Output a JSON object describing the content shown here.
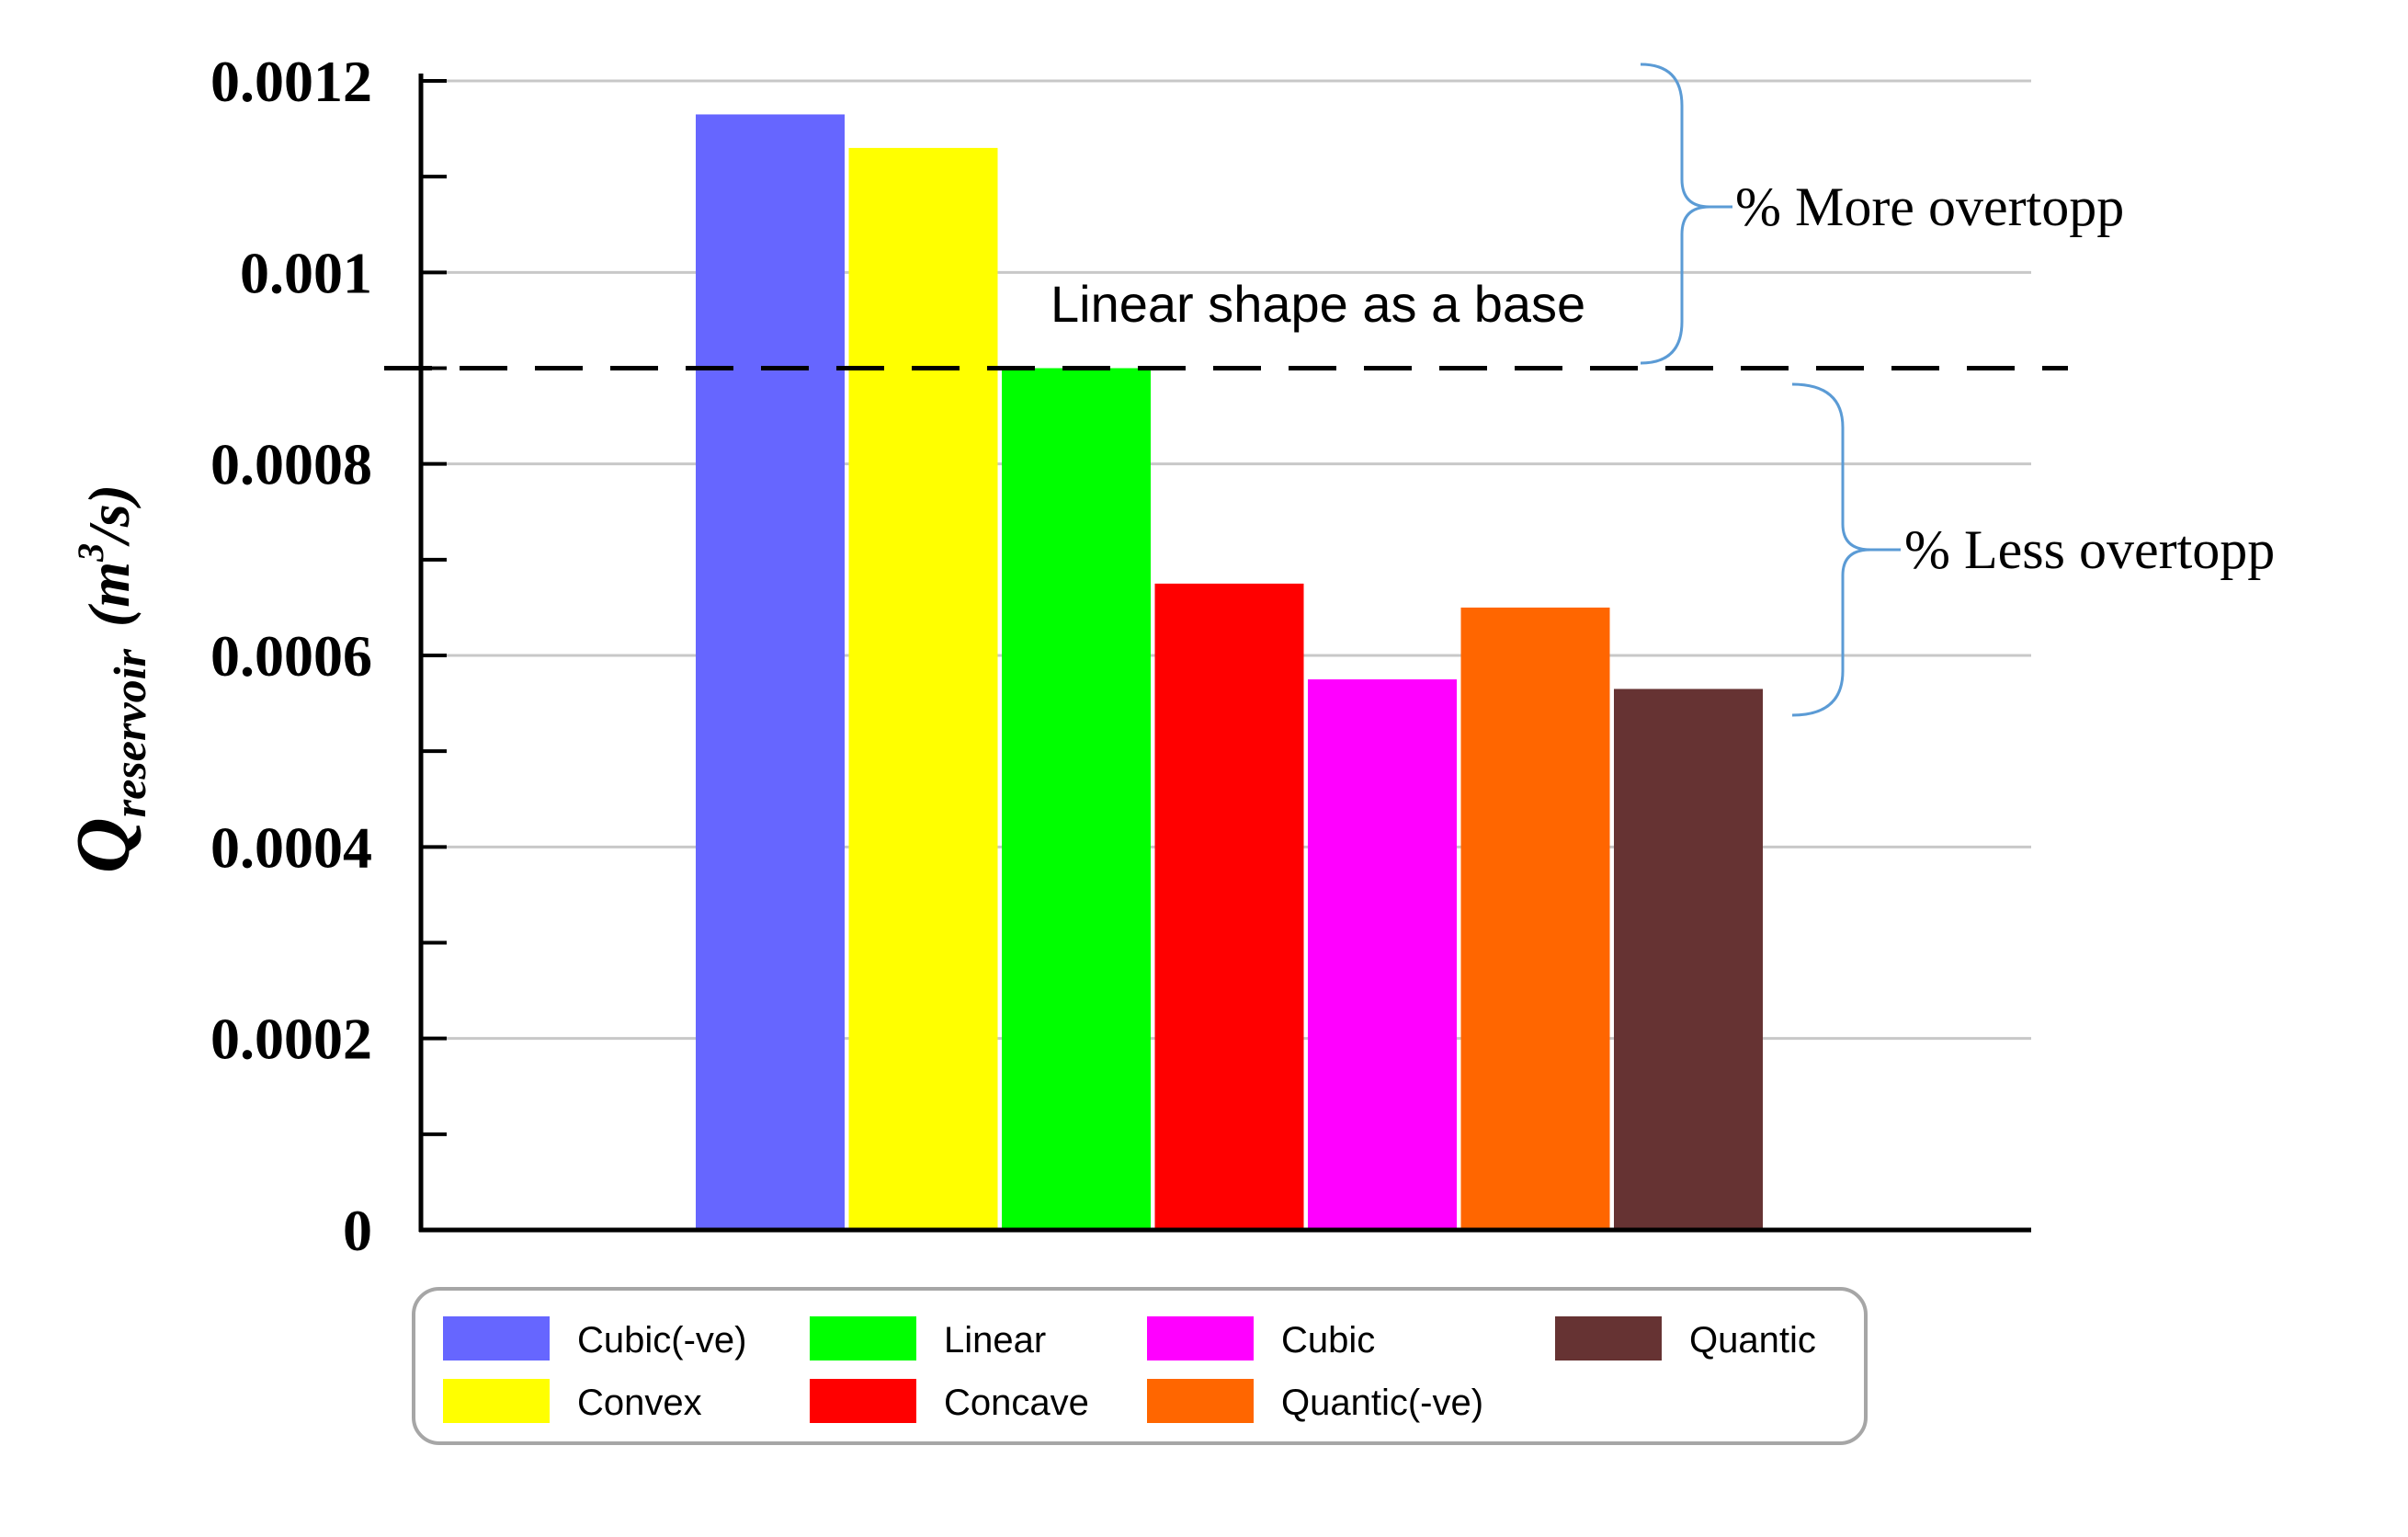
{
  "chart_data": {
    "type": "bar",
    "ylabel": {
      "main": "Q",
      "subscript": "reservoir",
      "unit_open": "(m",
      "unit_sup": "3",
      "unit_close": "/s)"
    },
    "ylim": [
      0,
      0.0012
    ],
    "yticks": [
      {
        "value": 0,
        "label": "0"
      },
      {
        "value": 0.0002,
        "label": "0.0002"
      },
      {
        "value": 0.0004,
        "label": "0.0004"
      },
      {
        "value": 0.0006,
        "label": "0.0006"
      },
      {
        "value": 0.0008,
        "label": "0.0008"
      },
      {
        "value": 0.001,
        "label": "0.001"
      },
      {
        "value": 0.0012,
        "label": "0.0012"
      }
    ],
    "minor_tick_step": 0.0001,
    "grid": true,
    "series": [
      {
        "name": "Cubic(-ve)",
        "value": 0.001165,
        "color": "#6666ff"
      },
      {
        "name": "Convex",
        "value": 0.00113,
        "color": "#ffff00"
      },
      {
        "name": "Linear",
        "value": 0.0009,
        "color": "#00ff00"
      },
      {
        "name": "Concave",
        "value": 0.000675,
        "color": "#ff0000"
      },
      {
        "name": "Cubic",
        "value": 0.000575,
        "color": "#ff00ff"
      },
      {
        "name": "Quantic(-ve)",
        "value": 0.00065,
        "color": "#ff6600"
      },
      {
        "name": "Quantic",
        "value": 0.000565,
        "color": "#663333"
      }
    ],
    "baseline": {
      "value": 0.0009,
      "label": "Linear shape as a base"
    },
    "annotations": {
      "more": "% More overtopp",
      "less": "% Less overtopp"
    },
    "legend": {
      "placement": "bottom",
      "order": [
        "Cubic(-ve)",
        "Convex",
        "Linear",
        "Concave",
        "Cubic",
        "Quantic(-ve)",
        "Quantic"
      ]
    },
    "colors": {
      "axis": "#000000",
      "grid": "#c8c8c8",
      "brace": "#5b9bd5",
      "legend_border": "#a6a6a6"
    }
  }
}
